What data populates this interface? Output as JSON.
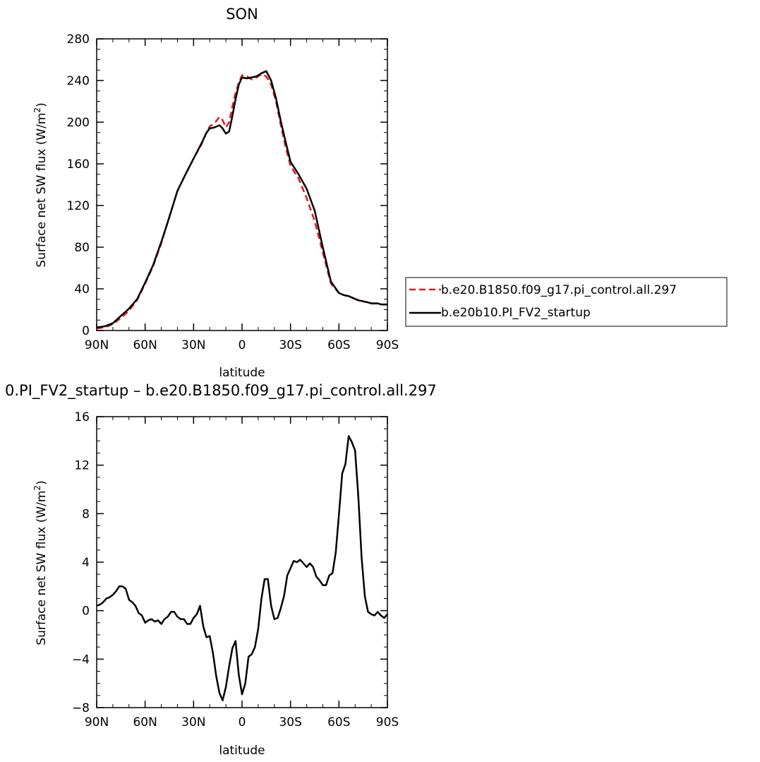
{
  "chart_data": [
    {
      "type": "line",
      "title": "SON",
      "xlabel": "latitude",
      "ylabel": "Surface net SW flux (W/m²)",
      "ylabel_text": "Surface net SW flux (W/m",
      "ylabel_sup": "2",
      "ylabel_close": ")",
      "xlim": [
        90,
        -90
      ],
      "ylim": [
        0,
        280
      ],
      "xticks": [
        90,
        60,
        30,
        0,
        -30,
        -60,
        -90
      ],
      "xtick_labels": [
        "90N",
        "60N",
        "30N",
        "0",
        "30S",
        "60S",
        "90S"
      ],
      "yticks": [
        0,
        40,
        80,
        120,
        160,
        200,
        240,
        280
      ],
      "ytick_labels": [
        "0",
        "40",
        "80",
        "120",
        "160",
        "200",
        "240",
        "280"
      ],
      "legend_position": "right",
      "series": [
        {
          "name": "b.e20.B1850.f09_g17.pi_control.all.297",
          "color": "#e41a1c",
          "dash": "dashed",
          "x": [
            90,
            85,
            80,
            75,
            70,
            65,
            60,
            55,
            50,
            45,
            40,
            35,
            30,
            25,
            22,
            20,
            17,
            14,
            12,
            10,
            8,
            6,
            4,
            2,
            0,
            -3,
            -6,
            -9,
            -12,
            -15,
            -18,
            -21,
            -24,
            -27,
            -30,
            -35,
            -40,
            -45,
            -50,
            -55,
            -60,
            -63,
            -66,
            -69,
            -72,
            -75,
            -78,
            -80,
            -82,
            -84,
            -86,
            -88,
            -90
          ],
          "y": [
            2,
            3,
            6,
            12,
            19,
            29,
            45,
            62,
            84,
            109,
            134,
            150,
            165,
            179,
            190,
            196,
            199,
            205,
            202,
            195,
            200,
            215,
            228,
            238,
            245,
            244,
            241,
            243,
            246,
            244,
            236,
            220,
            197,
            176,
            158,
            146,
            127,
            105,
            75,
            45,
            36,
            34,
            33,
            31,
            29,
            28,
            27,
            26,
            26,
            26,
            25,
            25,
            25
          ]
        },
        {
          "name": "b.e20b10.PI_FV2_startup",
          "color": "#000000",
          "dash": "solid",
          "x": [
            90,
            85,
            80,
            75,
            70,
            65,
            60,
            55,
            50,
            45,
            40,
            35,
            30,
            25,
            22,
            20,
            17,
            14,
            12,
            10,
            8,
            6,
            4,
            2,
            0,
            -3,
            -6,
            -9,
            -12,
            -15,
            -18,
            -21,
            -24,
            -27,
            -30,
            -35,
            -40,
            -45,
            -50,
            -55,
            -60,
            -63,
            -66,
            -69,
            -72,
            -75,
            -78,
            -80,
            -82,
            -84,
            -86,
            -88,
            -90
          ],
          "y": [
            3,
            4,
            7,
            14,
            21,
            30,
            46,
            63,
            85,
            109,
            134,
            150,
            165,
            180,
            190,
            194,
            195,
            197,
            194,
            189,
            191,
            206,
            222,
            236,
            243,
            242,
            243,
            244,
            247,
            249,
            240,
            223,
            201,
            181,
            162,
            150,
            136,
            115,
            80,
            47,
            36,
            34,
            33,
            31,
            29,
            28,
            27,
            26,
            26,
            26,
            25,
            25,
            25
          ]
        }
      ]
    },
    {
      "type": "line",
      "title": "0.PI_FV2_startup – b.e20.B1850.f09_g17.pi_control.all.297",
      "xlabel": "latitude",
      "ylabel": "Surface net SW flux (W/m²)",
      "ylabel_text": "Surface net SW flux (W/m",
      "ylabel_sup": "2",
      "ylabel_close": ")",
      "xlim": [
        90,
        -90
      ],
      "ylim": [
        -8,
        16
      ],
      "xticks": [
        90,
        60,
        30,
        0,
        -30,
        -60,
        -90
      ],
      "xtick_labels": [
        "90N",
        "60N",
        "30N",
        "0",
        "30S",
        "60S",
        "90S"
      ],
      "yticks": [
        -8,
        -4,
        0,
        4,
        8,
        12,
        16
      ],
      "ytick_labels": [
        "−8",
        "−4",
        "0",
        "4",
        "8",
        "12",
        "16"
      ],
      "series": [
        {
          "color": "#000000",
          "dash": "solid",
          "x": [
            90,
            88,
            86,
            84,
            82,
            80,
            78,
            76,
            74,
            72,
            70,
            68,
            66,
            64,
            62,
            60,
            58,
            56,
            54,
            52,
            50,
            48,
            46,
            44,
            42,
            40,
            38,
            36,
            34,
            32,
            30,
            28,
            26,
            24,
            22,
            20,
            18,
            16,
            14,
            12,
            10,
            8,
            6,
            4,
            2,
            0,
            -2,
            -4,
            -6,
            -8,
            -10,
            -12,
            -14,
            -16,
            -18,
            -20,
            -22,
            -24,
            -26,
            -28,
            -30,
            -32,
            -34,
            -36,
            -38,
            -40,
            -42,
            -44,
            -46,
            -48,
            -50,
            -52,
            -54,
            -56,
            -58,
            -60,
            -62,
            -64,
            -66,
            -68,
            -70,
            -72,
            -74,
            -76,
            -78,
            -80,
            -82,
            -84,
            -86,
            -88,
            -90
          ],
          "y": [
            0.4,
            0.5,
            0.7,
            1.0,
            1.1,
            1.3,
            1.6,
            2.0,
            2.0,
            1.8,
            0.9,
            0.7,
            0.4,
            -0.2,
            -0.4,
            -1.0,
            -0.8,
            -0.7,
            -0.9,
            -0.8,
            -1.1,
            -0.7,
            -0.5,
            -0.1,
            -0.1,
            -0.5,
            -0.7,
            -0.7,
            -1.1,
            -1.1,
            -0.6,
            -0.3,
            0.4,
            -1.3,
            -2.2,
            -2.1,
            -3.5,
            -5.4,
            -6.8,
            -7.4,
            -6.3,
            -4.6,
            -3.1,
            -2.5,
            -5.3,
            -6.9,
            -6.0,
            -3.8,
            -3.6,
            -3.0,
            -1.5,
            1.0,
            2.6,
            2.6,
            0.4,
            -0.7,
            -0.6,
            0.2,
            1.2,
            2.9,
            3.5,
            4.1,
            4.0,
            4.2,
            3.9,
            3.6,
            3.9,
            3.6,
            2.8,
            2.5,
            2.1,
            2.1,
            2.9,
            3.1,
            4.8,
            7.9,
            11.3,
            12.1,
            14.4,
            13.9,
            13.2,
            9.4,
            4.4,
            1.2,
            -0.1,
            -0.3,
            -0.4,
            -0.1,
            -0.4,
            -0.6,
            -0.3
          ]
        }
      ]
    }
  ]
}
